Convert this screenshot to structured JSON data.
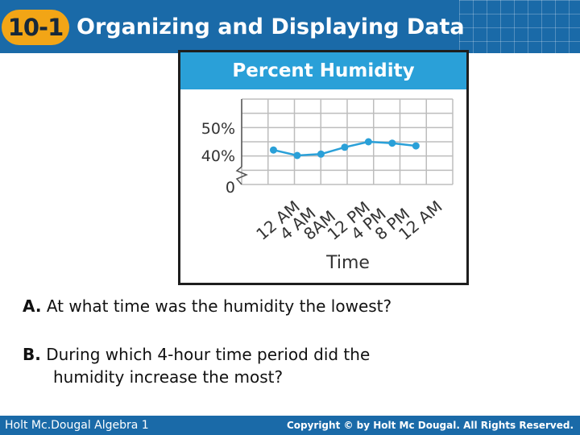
{
  "header": {
    "lesson_number": "10-1",
    "title": "Organizing and Displaying Data"
  },
  "chart_data": {
    "type": "line",
    "title": "Percent Humidity",
    "xlabel": "Time",
    "ylabel": "",
    "categories": [
      "12 AM",
      "4 AM",
      "8AM",
      "12 PM",
      "4 PM",
      "8 PM",
      "12 AM"
    ],
    "y_tick_labels": [
      "0",
      "40%",
      "50%"
    ],
    "axis_break": true,
    "grid": true,
    "series": [
      {
        "values": [
          42,
          40,
          40.5,
          43,
          45,
          44.5,
          43.5
        ]
      }
    ],
    "colors": {
      "line": "#2aa0d8",
      "title_bar": "#2aa0d8",
      "grid": "#bdbdbd"
    }
  },
  "questions": {
    "a_letter": "A.",
    "a_text": "At what time was the humidity the lowest?",
    "b_letter": "B.",
    "b_text_line1": "During which 4-hour time period did the",
    "b_text_line2": "humidity increase the most?"
  },
  "footer": {
    "left": "Holt Mc.Dougal Algebra 1",
    "right": "Copyright © by Holt Mc Dougal. All Rights Reserved."
  }
}
